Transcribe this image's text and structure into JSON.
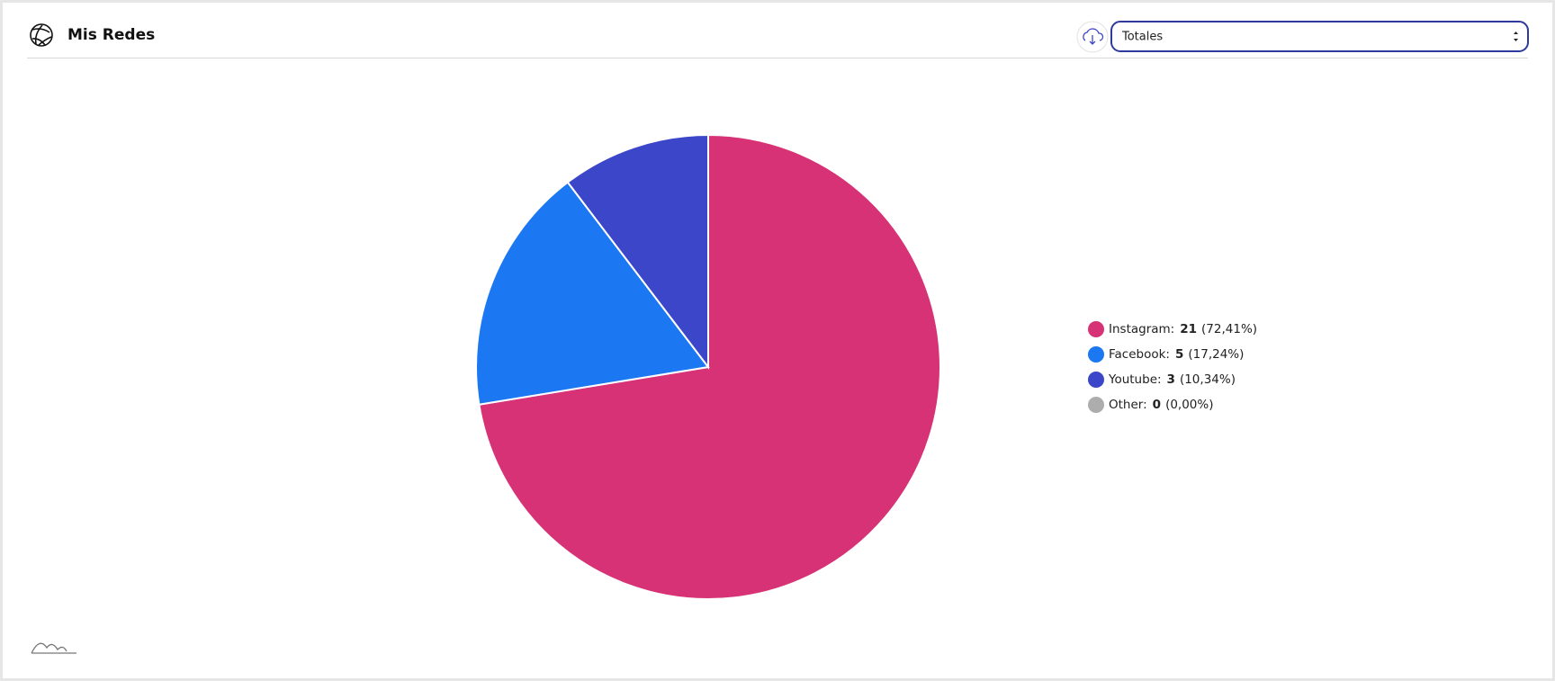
{
  "selector": "Totales",
  "chart_data": {
    "type": "pie",
    "title": "Mis Redes",
    "categories": [
      "Instagram:",
      "Facebook:",
      "Youtube:",
      "Other:"
    ],
    "values": [
      21,
      5,
      3,
      0
    ],
    "percent_labels": [
      "(72,41%)",
      "(17,24%)",
      "(10,34%)",
      "(0,00%)"
    ],
    "colors": [
      "#d63275",
      "#1b78f2",
      "#3c46c8",
      "#adadad"
    ]
  }
}
